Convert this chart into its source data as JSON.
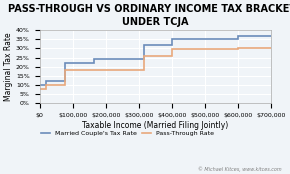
{
  "title": "PASS-THROUGH VS ORDINARY INCOME TAX BRACKETS\nUNDER TCJA",
  "xlabel": "Taxable Income (Married Filing Jointly)",
  "ylabel": "Marginal Tax Rate",
  "xlim": [
    0,
    700000
  ],
  "ylim": [
    0,
    0.4
  ],
  "yticks": [
    0.0,
    0.05,
    0.1,
    0.15,
    0.2,
    0.25,
    0.3,
    0.35,
    0.4
  ],
  "ytick_labels": [
    "0%",
    "5%",
    "10%",
    "15%",
    "20%",
    "25%",
    "30%",
    "35%",
    "40%"
  ],
  "xticks": [
    0,
    100000,
    200000,
    300000,
    400000,
    500000,
    600000,
    700000
  ],
  "xtick_labels": [
    "$0",
    "$100,000",
    "$200,000",
    "$300,000",
    "$400,000",
    "$500,000",
    "$600,000",
    "$700,000"
  ],
  "married_color": "#6b8cba",
  "passthrough_color": "#e8a87c",
  "background_color": "#f0f4f8",
  "grid_color": "#ffffff",
  "married_x": [
    0,
    19050,
    19050,
    77400,
    77400,
    165000,
    165000,
    315000,
    315000,
    400000,
    400000,
    600000,
    600000,
    700000
  ],
  "married_y": [
    0.1,
    0.1,
    0.12,
    0.12,
    0.22,
    0.22,
    0.24,
    0.24,
    0.32,
    0.32,
    0.35,
    0.35,
    0.37,
    0.37
  ],
  "passthrough_x": [
    0,
    19050,
    19050,
    77400,
    77400,
    315000,
    315000,
    400000,
    400000,
    600000,
    600000,
    700000
  ],
  "passthrough_y": [
    0.08,
    0.08,
    0.1,
    0.1,
    0.18,
    0.18,
    0.26,
    0.26,
    0.295,
    0.295,
    0.3,
    0.3
  ],
  "legend_married": "Married Couple's Tax Rate",
  "legend_passthrough": "Pass-Through Rate",
  "credit_text": "© Michael Kitces, www.kitces.com",
  "title_fontsize": 7,
  "label_fontsize": 5.5,
  "tick_fontsize": 4.5,
  "legend_fontsize": 4.5
}
